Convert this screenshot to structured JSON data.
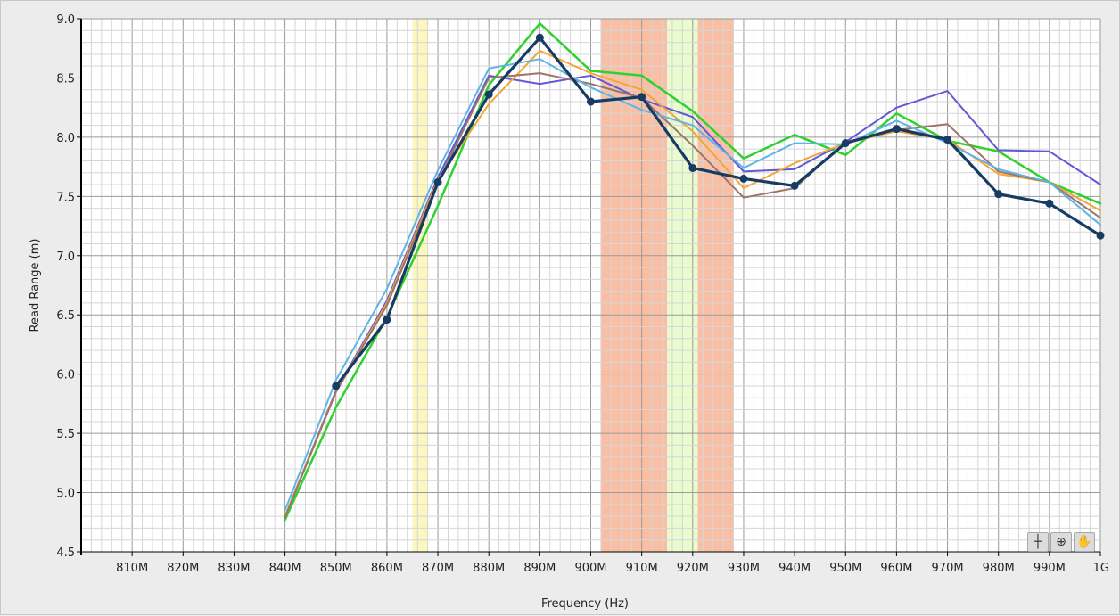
{
  "chart_data": {
    "type": "line",
    "title": "",
    "xlabel": "Frequency (Hz)",
    "ylabel": "Read Range (m)",
    "xlim": [
      800,
      1000
    ],
    "ylim": [
      4.5,
      9.0
    ],
    "x_ticks": [
      {
        "value": 810,
        "label": "810M"
      },
      {
        "value": 820,
        "label": "820M"
      },
      {
        "value": 830,
        "label": "830M"
      },
      {
        "value": 840,
        "label": "840M"
      },
      {
        "value": 850,
        "label": "850M"
      },
      {
        "value": 860,
        "label": "860M"
      },
      {
        "value": 870,
        "label": "870M"
      },
      {
        "value": 880,
        "label": "880M"
      },
      {
        "value": 890,
        "label": "890M"
      },
      {
        "value": 900,
        "label": "900M"
      },
      {
        "value": 910,
        "label": "910M"
      },
      {
        "value": 920,
        "label": "920M"
      },
      {
        "value": 930,
        "label": "930M"
      },
      {
        "value": 940,
        "label": "940M"
      },
      {
        "value": 950,
        "label": "950M"
      },
      {
        "value": 960,
        "label": "960M"
      },
      {
        "value": 970,
        "label": "970M"
      },
      {
        "value": 980,
        "label": "980M"
      },
      {
        "value": 990,
        "label": "990M"
      },
      {
        "value": 1000,
        "label": "1G"
      }
    ],
    "y_ticks": [
      {
        "value": 4.5,
        "label": "4.5"
      },
      {
        "value": 5.0,
        "label": "5.0"
      },
      {
        "value": 5.5,
        "label": "5.5"
      },
      {
        "value": 6.0,
        "label": "6.0"
      },
      {
        "value": 6.5,
        "label": "6.5"
      },
      {
        "value": 7.0,
        "label": "7.0"
      },
      {
        "value": 7.5,
        "label": "7.5"
      },
      {
        "value": 8.0,
        "label": "8.0"
      },
      {
        "value": 8.5,
        "label": "8.5"
      },
      {
        "value": 9.0,
        "label": "9.0"
      }
    ],
    "grid": true,
    "legend": "none",
    "bands": [
      {
        "x_start": 865,
        "x_end": 868,
        "color": "#fbf7bf"
      },
      {
        "x_start": 902,
        "x_end": 915,
        "color": "#f9bfa4"
      },
      {
        "x_start": 915,
        "x_end": 921,
        "color": "#e9fbcf"
      },
      {
        "x_start": 921,
        "x_end": 928,
        "color": "#f9bfa4"
      }
    ],
    "x": [
      840,
      850,
      860,
      870,
      880,
      890,
      900,
      910,
      920,
      930,
      940,
      950,
      960,
      970,
      980,
      990,
      1000
    ],
    "series": [
      {
        "color": "#2ed12e",
        "width": 2.5,
        "markers": false,
        "values": [
          4.77,
          5.72,
          6.48,
          7.42,
          8.44,
          8.96,
          8.56,
          8.52,
          8.22,
          7.82,
          8.02,
          7.85,
          8.2,
          7.97,
          7.88,
          7.62,
          7.44
        ]
      },
      {
        "color": "#6158d6",
        "width": 2,
        "markers": false,
        "values": [
          4.8,
          5.86,
          6.62,
          7.66,
          8.52,
          8.45,
          8.52,
          8.32,
          8.17,
          7.71,
          7.73,
          7.96,
          8.25,
          8.39,
          7.89,
          7.88,
          7.6
        ]
      },
      {
        "color": "#f2a637",
        "width": 2,
        "markers": false,
        "values": [
          4.8,
          5.85,
          6.6,
          7.64,
          8.28,
          8.73,
          8.54,
          8.4,
          8.05,
          7.57,
          7.78,
          7.95,
          8.05,
          7.98,
          7.69,
          7.62,
          7.38
        ]
      },
      {
        "color": "#9c7468",
        "width": 2,
        "markers": false,
        "values": [
          4.79,
          5.85,
          6.58,
          7.62,
          8.5,
          8.54,
          8.45,
          8.33,
          7.93,
          7.49,
          7.57,
          7.96,
          8.06,
          8.11,
          7.71,
          7.62,
          7.32
        ]
      },
      {
        "color": "#5fb4e6",
        "width": 2,
        "markers": false,
        "values": [
          4.85,
          5.95,
          6.72,
          7.72,
          8.58,
          8.66,
          8.42,
          8.23,
          8.1,
          7.74,
          7.95,
          7.94,
          8.14,
          7.95,
          7.73,
          7.62,
          7.26
        ]
      },
      {
        "color": "#173b63",
        "width": 3.2,
        "markers": true,
        "values": [
          null,
          5.9,
          6.46,
          7.62,
          8.36,
          8.84,
          8.3,
          8.34,
          7.74,
          7.65,
          7.59,
          7.95,
          8.07,
          7.98,
          7.52,
          7.44,
          7.17
        ]
      }
    ]
  },
  "graph_palette": {
    "tools": [
      {
        "icon": "cursor-crosshair-icon",
        "glyph": "┼"
      },
      {
        "icon": "zoom-icon",
        "glyph": "⊕"
      },
      {
        "icon": "pan-hand-icon",
        "glyph": "✋"
      }
    ]
  }
}
